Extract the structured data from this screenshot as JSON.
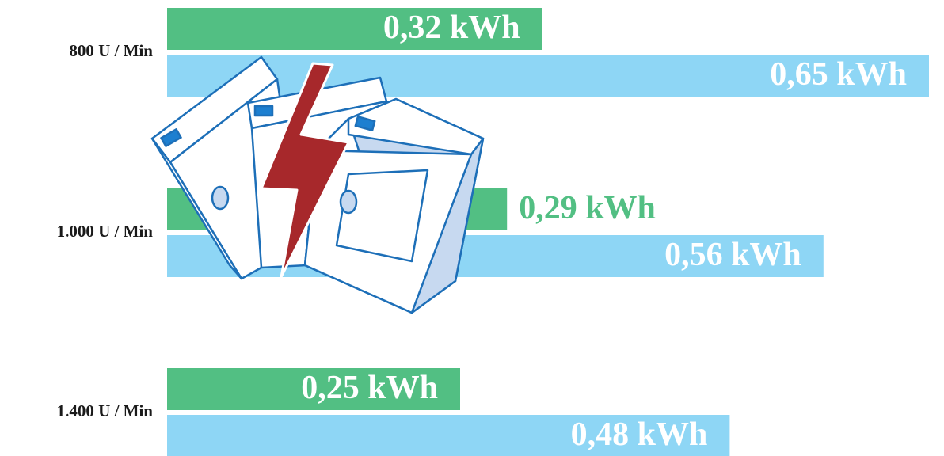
{
  "chart_data": {
    "type": "bar",
    "orientation": "horizontal",
    "categories": [
      "800 U / Min",
      "1.000 U / Min",
      "1.400 U / Min"
    ],
    "series": [
      {
        "color": "#52bf83",
        "values": [
          0.32,
          0.29,
          0.25
        ],
        "value_labels": [
          "0,32 kWh",
          "0,29 kWh",
          "0,25 kWh"
        ]
      },
      {
        "color": "#8ed6f5",
        "values": [
          0.65,
          0.56,
          0.48
        ],
        "value_labels": [
          "0,65 kWh",
          "0,56 kWh",
          "0,48 kWh"
        ]
      }
    ]
  }
}
